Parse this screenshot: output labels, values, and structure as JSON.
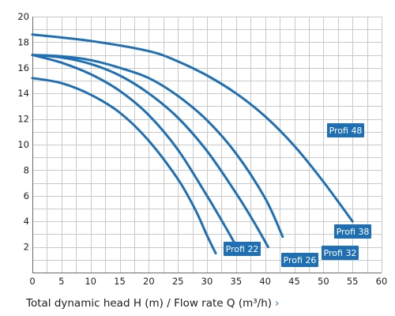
{
  "chart_data": {
    "type": "line",
    "xlabel": "Total dynamic head H (m) / Flow rate Q (m³/h)",
    "xlim": [
      0,
      60
    ],
    "ylim": [
      0,
      20
    ],
    "xticks": [
      0,
      5,
      10,
      15,
      20,
      25,
      30,
      35,
      40,
      45,
      50,
      55,
      60
    ],
    "yticks": [
      2,
      4,
      6,
      8,
      10,
      12,
      14,
      16,
      18,
      20
    ],
    "grid": true,
    "curve_color": "#1f6fb5",
    "series": [
      {
        "name": "Profi 22",
        "x": [
          0,
          5,
          10,
          15,
          20,
          25,
          28,
          30,
          31.5
        ],
        "y": [
          15.2,
          14.8,
          13.9,
          12.5,
          10.3,
          7.3,
          4.9,
          2.9,
          1.5
        ]
      },
      {
        "name": "Profi 26",
        "x": [
          0,
          5,
          10,
          15,
          20,
          25,
          30,
          33,
          35.5
        ],
        "y": [
          17.0,
          16.4,
          15.5,
          14.2,
          12.3,
          9.6,
          6.0,
          3.7,
          1.7
        ]
      },
      {
        "name": "Profi 32",
        "x": [
          0,
          5,
          10,
          15,
          20,
          25,
          30,
          35,
          38,
          40.5
        ],
        "y": [
          17.0,
          16.8,
          16.3,
          15.4,
          14.0,
          12.1,
          9.5,
          6.2,
          4.0,
          2.0
        ]
      },
      {
        "name": "Profi 38",
        "x": [
          0,
          5,
          10,
          15,
          20,
          25,
          30,
          35,
          40,
          43
        ],
        "y": [
          17.0,
          16.9,
          16.6,
          16.0,
          15.2,
          13.8,
          11.9,
          9.3,
          5.8,
          2.8
        ]
      },
      {
        "name": "Profi 48",
        "x": [
          0,
          10,
          20,
          25,
          30,
          35,
          40,
          45,
          50,
          55
        ],
        "y": [
          18.6,
          18.1,
          17.3,
          16.5,
          15.4,
          14.0,
          12.2,
          9.9,
          7.1,
          4.0
        ]
      }
    ]
  },
  "footer": {
    "more_icon": "chevron-right-icon",
    "more_glyph": "›"
  }
}
